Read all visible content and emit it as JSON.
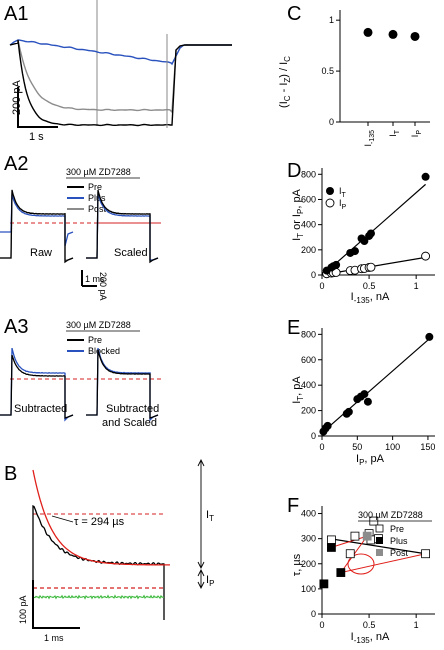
{
  "figure_panels": {
    "A1": {
      "label": "A1",
      "scalebar_y": "200 pA",
      "scalebar_x": "1 s"
    },
    "A2": {
      "label": "A2",
      "legend_title": "300 µM ZD7288",
      "legend": [
        "Pre",
        "Plus",
        "Post"
      ],
      "raw_label": "Raw",
      "scaled_label": "Scaled",
      "scalebar_x": "1 ms",
      "scalebar_y": "200 pA"
    },
    "A3": {
      "label": "A3",
      "legend_title": "300 µM ZD7288",
      "legend": [
        "Pre",
        "Blocked"
      ],
      "subtracted_label": "Subtracted",
      "subtracted_scaled_label_1": "Subtracted",
      "subtracted_scaled_label_2": "and Scaled"
    },
    "B": {
      "label": "B",
      "tau_label": "τ = 294 µs",
      "it_label": "I",
      "it_sub": "T",
      "ip_label": "I",
      "ip_sub": "P",
      "scalebar_y": "100 pA",
      "scalebar_x": "1 ms"
    }
  },
  "colors": {
    "pre": "#000000",
    "plus": "#2a52be",
    "post": "#8c8c8c",
    "blocked": "#2a52be",
    "fit": "#e0201b",
    "baseline": "#d42020",
    "green": "#3cb93c"
  },
  "chart_data": [
    {
      "panel": "C",
      "label": "C",
      "type": "scatter",
      "ylabel_main": "(I",
      "ylabel_sub1": "C",
      "ylabel_mid": " - I",
      "ylabel_sub2": "Z",
      "ylabel_end": ") / I",
      "ylabel_sub3": "C",
      "categories": [
        {
          "main": "I",
          "sub": "-135"
        },
        {
          "main": "I",
          "sub": "T"
        },
        {
          "main": "I",
          "sub": "P"
        }
      ],
      "values": [
        0.88,
        0.86,
        0.84
      ],
      "ylim": [
        0,
        1.1
      ],
      "yticks": [
        "0",
        "0.5",
        "1"
      ]
    },
    {
      "panel": "D",
      "label": "D",
      "type": "scatter",
      "xlabel_main": "I",
      "xlabel_sub": "-135",
      "xlabel_unit": ", nA",
      "ylabel_main": "I",
      "ylabel_sub1": "T",
      "ylabel_mid": " or I",
      "ylabel_sub2": "P",
      "ylabel_unit": ", pA",
      "xlim": [
        0,
        1.2
      ],
      "ylim": [
        0,
        850
      ],
      "xticks": [
        "0",
        "0.5",
        "1"
      ],
      "yticks": [
        "0",
        "200",
        "400",
        "600",
        "800"
      ],
      "legend": [
        {
          "main": "I",
          "sub": "T"
        },
        {
          "main": "I",
          "sub": "P"
        }
      ],
      "series": [
        {
          "x": [
            0.05,
            0.1,
            0.12,
            0.15,
            0.3,
            0.35,
            0.42,
            0.45,
            0.5,
            0.52,
            1.1
          ],
          "values": [
            35,
            60,
            70,
            80,
            175,
            190,
            290,
            270,
            310,
            330,
            780
          ]
        },
        {
          "x": [
            0.05,
            0.1,
            0.12,
            0.15,
            0.3,
            0.35,
            0.42,
            0.45,
            0.5,
            0.52,
            1.1
          ],
          "values": [
            10,
            15,
            18,
            20,
            35,
            38,
            50,
            52,
            60,
            62,
            150
          ]
        }
      ]
    },
    {
      "panel": "E",
      "label": "E",
      "type": "scatter",
      "xlabel_main": "I",
      "xlabel_sub": "P",
      "xlabel_unit": ", pA",
      "ylabel_main": "I",
      "ylabel_sub": "T",
      "ylabel_unit": ", pA",
      "xlim": [
        0,
        160
      ],
      "ylim": [
        0,
        850
      ],
      "xticks": [
        "0",
        "50",
        "100",
        "150"
      ],
      "yticks": [
        "0",
        "200",
        "400",
        "600",
        "800"
      ],
      "series": [
        {
          "x": [
            2,
            5,
            8,
            35,
            38,
            50,
            55,
            60,
            65,
            152
          ],
          "values": [
            35,
            60,
            80,
            175,
            190,
            290,
            310,
            330,
            270,
            780
          ]
        }
      ]
    },
    {
      "panel": "F",
      "label": "F",
      "type": "scatter",
      "xlabel_main": "I",
      "xlabel_sub": "-135",
      "xlabel_unit": ", nA",
      "ylabel_main": "τ",
      "ylabel_unit": ", µs",
      "xlim": [
        0,
        1.2
      ],
      "ylim": [
        0,
        430
      ],
      "xticks": [
        "0",
        "0.5",
        "1"
      ],
      "yticks": [
        "0",
        "100",
        "200",
        "300",
        "400"
      ],
      "legend_title": "300 µM ZD7288",
      "legend": [
        "Pre",
        "Plus",
        "Post"
      ],
      "series": [
        {
          "name": "Pre",
          "x": [
            0.1,
            0.3,
            0.35,
            0.5,
            0.52,
            0.55,
            0.6,
            1.1
          ],
          "values": [
            295,
            240,
            310,
            320,
            295,
            370,
            300,
            240
          ]
        },
        {
          "name": "Plus",
          "x": [
            0.02,
            0.1,
            0.2
          ],
          "values": [
            120,
            265,
            165
          ]
        },
        {
          "name": "Post",
          "x": [
            0.48
          ],
          "values": [
            310
          ]
        }
      ]
    }
  ]
}
